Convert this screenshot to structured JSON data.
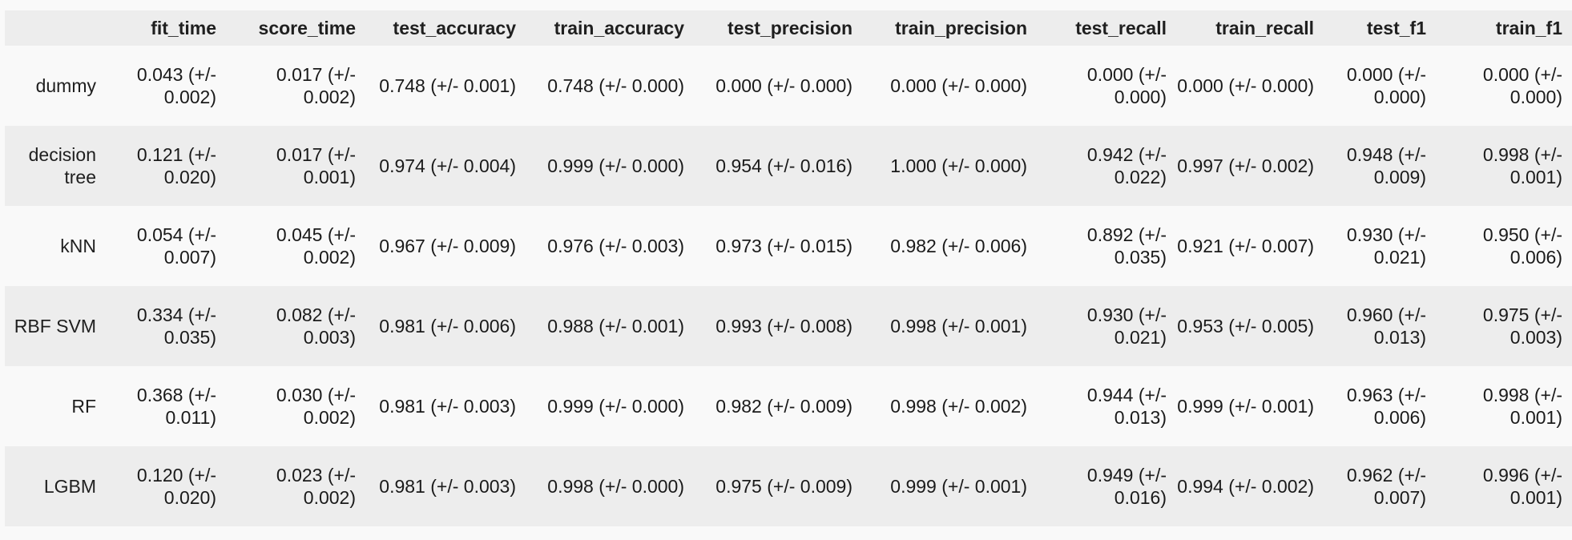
{
  "table": {
    "columns": [
      "",
      "fit_time",
      "score_time",
      "test_accuracy",
      "train_accuracy",
      "test_precision",
      "train_precision",
      "test_recall",
      "train_recall",
      "test_f1",
      "train_f1"
    ],
    "rows": [
      {
        "name": "dummy",
        "cells": [
          "0.043 (+/- 0.002)",
          "0.017 (+/- 0.002)",
          "0.748 (+/- 0.001)",
          "0.748 (+/- 0.000)",
          "0.000 (+/- 0.000)",
          "0.000 (+/- 0.000)",
          "0.000 (+/- 0.000)",
          "0.000 (+/- 0.000)",
          "0.000 (+/- 0.000)",
          "0.000 (+/- 0.000)"
        ]
      },
      {
        "name": "decision tree",
        "cells": [
          "0.121 (+/- 0.020)",
          "0.017 (+/- 0.001)",
          "0.974 (+/- 0.004)",
          "0.999 (+/- 0.000)",
          "0.954 (+/- 0.016)",
          "1.000 (+/- 0.000)",
          "0.942 (+/- 0.022)",
          "0.997 (+/- 0.002)",
          "0.948 (+/- 0.009)",
          "0.998 (+/- 0.001)"
        ]
      },
      {
        "name": "kNN",
        "cells": [
          "0.054 (+/- 0.007)",
          "0.045 (+/- 0.002)",
          "0.967 (+/- 0.009)",
          "0.976 (+/- 0.003)",
          "0.973 (+/- 0.015)",
          "0.982 (+/- 0.006)",
          "0.892 (+/- 0.035)",
          "0.921 (+/- 0.007)",
          "0.930 (+/- 0.021)",
          "0.950 (+/- 0.006)"
        ]
      },
      {
        "name": "RBF SVM",
        "cells": [
          "0.334 (+/- 0.035)",
          "0.082 (+/- 0.003)",
          "0.981 (+/- 0.006)",
          "0.988 (+/- 0.001)",
          "0.993 (+/- 0.008)",
          "0.998 (+/- 0.001)",
          "0.930 (+/- 0.021)",
          "0.953 (+/- 0.005)",
          "0.960 (+/- 0.013)",
          "0.975 (+/- 0.003)"
        ]
      },
      {
        "name": "RF",
        "cells": [
          "0.368 (+/- 0.011)",
          "0.030 (+/- 0.002)",
          "0.981 (+/- 0.003)",
          "0.999 (+/- 0.000)",
          "0.982 (+/- 0.009)",
          "0.998 (+/- 0.002)",
          "0.944 (+/- 0.013)",
          "0.999 (+/- 0.001)",
          "0.963 (+/- 0.006)",
          "0.998 (+/- 0.001)"
        ]
      },
      {
        "name": "LGBM",
        "cells": [
          "0.120 (+/- 0.020)",
          "0.023 (+/- 0.002)",
          "0.981 (+/- 0.003)",
          "0.998 (+/- 0.000)",
          "0.975 (+/- 0.009)",
          "0.999 (+/- 0.001)",
          "0.949 (+/- 0.016)",
          "0.994 (+/- 0.002)",
          "0.962 (+/- 0.007)",
          "0.996 (+/- 0.001)"
        ]
      }
    ]
  }
}
